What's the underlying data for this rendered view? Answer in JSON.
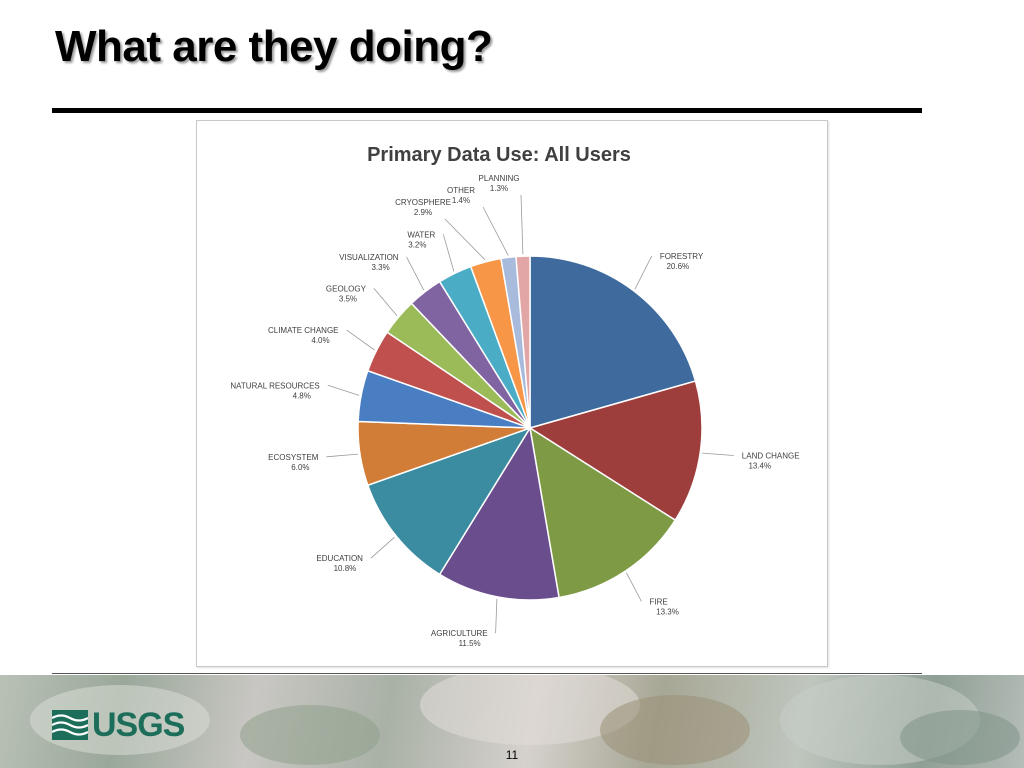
{
  "slide": {
    "title": "What are they doing?",
    "page_number": "11",
    "logo_text": "USGS"
  },
  "chart_data": {
    "type": "pie",
    "title": "Primary Data Use: All Users",
    "slices": [
      {
        "label": "FORESTRY",
        "value": 20.6,
        "value_label": "20.6%",
        "color": "#3f6a9e"
      },
      {
        "label": "LAND CHANGE",
        "value": 13.4,
        "value_label": "13.4%",
        "color": "#9e3e3c"
      },
      {
        "label": "FIRE",
        "value": 13.3,
        "value_label": "13.3%",
        "color": "#7f9a45"
      },
      {
        "label": "AGRICULTURE",
        "value": 11.5,
        "value_label": "11.5%",
        "color": "#6a4d8c"
      },
      {
        "label": "EDUCATION",
        "value": 10.8,
        "value_label": "10.8%",
        "color": "#3b8ca0"
      },
      {
        "label": "ECOSYSTEM",
        "value": 6.0,
        "value_label": "6.0%",
        "color": "#d27d37"
      },
      {
        "label": "NATURAL RESOURCES",
        "value": 4.8,
        "value_label": "4.8%",
        "color": "#4a7ec2"
      },
      {
        "label": "CLIMATE CHANGE",
        "value": 4.0,
        "value_label": "4.0%",
        "color": "#c0504d"
      },
      {
        "label": "GEOLOGY",
        "value": 3.5,
        "value_label": "3.5%",
        "color": "#9bbb59"
      },
      {
        "label": "VISUALIZATION",
        "value": 3.3,
        "value_label": "3.3%",
        "color": "#8064a2"
      },
      {
        "label": "WATER",
        "value": 3.2,
        "value_label": "3.2%",
        "color": "#4bacc6"
      },
      {
        "label": "CRYOSPHERE",
        "value": 2.9,
        "value_label": "2.9%",
        "color": "#f79646"
      },
      {
        "label": "OTHER",
        "value": 1.4,
        "value_label": "1.4%",
        "color": "#a9bbdc"
      },
      {
        "label": "PLANNING",
        "value": 1.3,
        "value_label": "1.3%",
        "color": "#e2a6a6"
      }
    ],
    "start_angle_deg": 0,
    "direction": "clockwise",
    "legend": "none"
  },
  "colors": {
    "logo": "#1c6e5a",
    "title_shadow": "#9a9a9a"
  }
}
